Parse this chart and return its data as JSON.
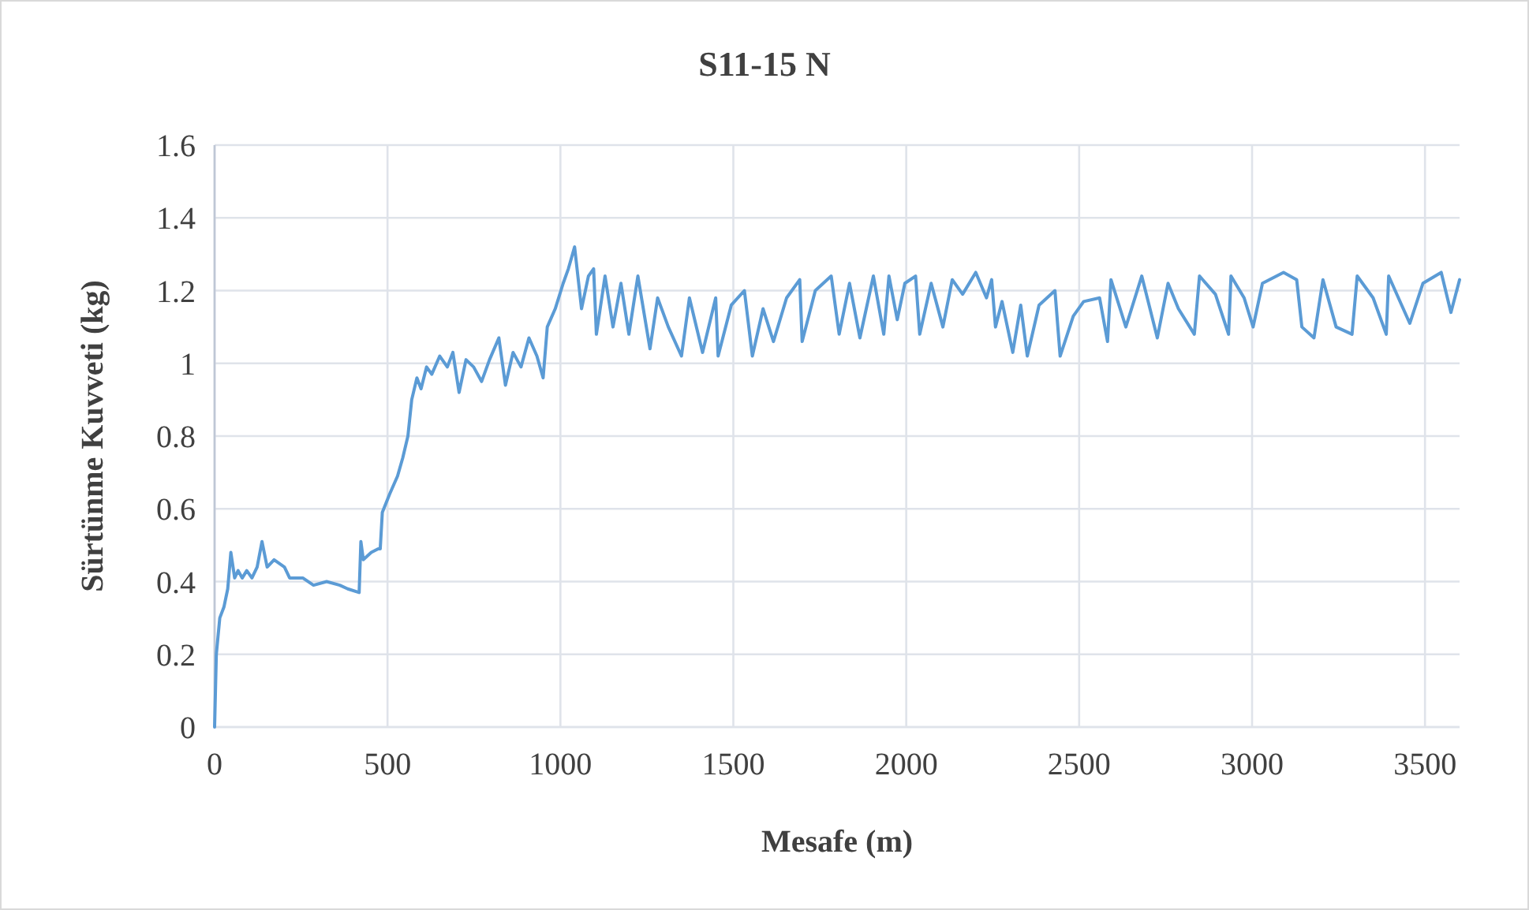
{
  "chart_data": {
    "type": "line",
    "title": "S11-15 N",
    "xlabel": "Mesafe (m)",
    "ylabel": "Sürtünme Kuvveti (kg)",
    "xlim": [
      0,
      3600
    ],
    "xticks": [
      0,
      500,
      1000,
      1500,
      2000,
      2500,
      3000,
      3500
    ],
    "ylim": [
      0,
      1.6
    ],
    "yticks": [
      0,
      {
        "value": 0.2,
        "label": "0.2"
      },
      {
        "value": 0.4,
        "label": "0.4"
      },
      {
        "value": 0.6,
        "label": "0.6"
      },
      {
        "value": 0.8,
        "label": "0.8"
      },
      1,
      {
        "value": 1.2,
        "label": "1.2"
      },
      {
        "value": 1.4,
        "label": "1.4"
      },
      {
        "value": 1.6,
        "label": "1.6"
      }
    ],
    "grid": true,
    "marker": "none",
    "line_style": "solid",
    "series": [
      {
        "color": "#5b9bd5",
        "x": [
          0,
          5,
          15,
          27,
          38,
          47,
          58,
          68,
          80,
          93,
          108,
          123,
          137,
          152,
          172,
          202,
          217,
          255,
          286,
          324,
          362,
          385,
          418,
          423,
          430,
          453,
          473,
          479,
          485,
          506,
          529,
          544,
          559,
          570,
          585,
          597,
          613,
          628,
          651,
          673,
          689,
          707,
          727,
          749,
          772,
          795,
          822,
          841,
          863,
          886,
          909,
          932,
          950,
          962,
          985,
          1008,
          1023,
          1041,
          1061,
          1081,
          1096,
          1104,
          1129,
          1152,
          1175,
          1198,
          1224,
          1259,
          1281,
          1312,
          1350,
          1373,
          1411,
          1449,
          1456,
          1494,
          1532,
          1555,
          1586,
          1616,
          1654,
          1692,
          1699,
          1737,
          1783,
          1806,
          1836,
          1866,
          1905,
          1935,
          1950,
          1974,
          1996,
          2027,
          2039,
          2072,
          2106,
          2133,
          2163,
          2201,
          2232,
          2247,
          2258,
          2277,
          2308,
          2331,
          2350,
          2384,
          2430,
          2445,
          2483,
          2513,
          2559,
          2582,
          2592,
          2635,
          2681,
          2726,
          2757,
          2787,
          2833,
          2848,
          2894,
          2932,
          2939,
          2977,
          3003,
          3030,
          3091,
          3129,
          3144,
          3179,
          3205,
          3243,
          3289,
          3304,
          3350,
          3388,
          3395,
          3456,
          3494,
          3547,
          3575,
          3600
        ],
        "values": [
          0,
          0.2,
          0.3,
          0.33,
          0.38,
          0.48,
          0.41,
          0.43,
          0.41,
          0.43,
          0.41,
          0.44,
          0.51,
          0.44,
          0.46,
          0.44,
          0.41,
          0.41,
          0.39,
          0.4,
          0.39,
          0.38,
          0.37,
          0.51,
          0.46,
          0.48,
          0.49,
          0.49,
          0.59,
          0.64,
          0.69,
          0.74,
          0.8,
          0.9,
          0.96,
          0.93,
          0.99,
          0.97,
          1.02,
          0.99,
          1.03,
          0.92,
          1.01,
          0.99,
          0.95,
          1.01,
          1.07,
          0.94,
          1.03,
          0.99,
          1.07,
          1.02,
          0.96,
          1.1,
          1.15,
          1.22,
          1.26,
          1.32,
          1.15,
          1.24,
          1.26,
          1.08,
          1.24,
          1.1,
          1.22,
          1.08,
          1.24,
          1.04,
          1.18,
          1.1,
          1.02,
          1.18,
          1.03,
          1.18,
          1.02,
          1.16,
          1.2,
          1.02,
          1.15,
          1.06,
          1.18,
          1.23,
          1.06,
          1.2,
          1.24,
          1.08,
          1.22,
          1.07,
          1.24,
          1.08,
          1.24,
          1.12,
          1.22,
          1.24,
          1.08,
          1.22,
          1.1,
          1.23,
          1.19,
          1.25,
          1.18,
          1.23,
          1.1,
          1.17,
          1.03,
          1.16,
          1.02,
          1.16,
          1.2,
          1.02,
          1.13,
          1.17,
          1.18,
          1.06,
          1.23,
          1.1,
          1.24,
          1.07,
          1.22,
          1.15,
          1.08,
          1.24,
          1.19,
          1.08,
          1.24,
          1.18,
          1.1,
          1.22,
          1.25,
          1.23,
          1.1,
          1.07,
          1.23,
          1.1,
          1.08,
          1.24,
          1.18,
          1.08,
          1.24,
          1.11,
          1.22,
          1.25,
          1.14,
          1.23
        ]
      }
    ]
  }
}
